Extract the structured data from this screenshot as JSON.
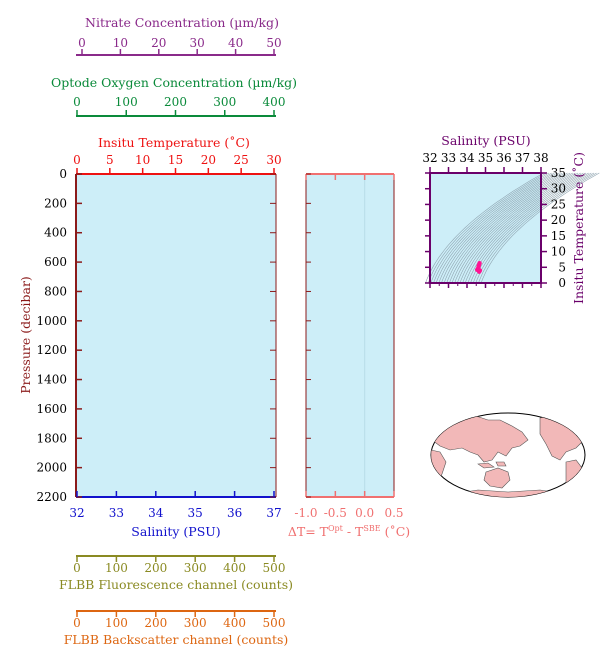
{
  "colors": {
    "nitrate": "#8a2a8a",
    "oxygen": "#0a8a3a",
    "temperature": "#ee1111",
    "salinity": "#1111cc",
    "pressure": "#8b1a1a",
    "dt": "#f07070",
    "fluor": "#8a8a22",
    "backscatter": "#dd6611",
    "ts_axes": "#6a006a",
    "panel_fill": "#cdeef8",
    "profile_marker": "#ff1493",
    "land": "#f2b8b8",
    "ocean": "#ffffff"
  },
  "chart_data": [
    {
      "type": "line",
      "title": "",
      "axes": {
        "nitrate": {
          "label": "Nitrate Concentration (µm/kg)",
          "range": [
            0,
            50
          ],
          "ticks": [
            "0",
            "10",
            "20",
            "30",
            "40",
            "50"
          ]
        },
        "oxygen": {
          "label": "Optode Oxygen Concentration (µm/kg)",
          "range": [
            0,
            400
          ],
          "ticks": [
            "0",
            "100",
            "200",
            "300",
            "400"
          ]
        },
        "temperature": {
          "label": "Insitu Temperature (˚C)",
          "range": [
            0,
            30
          ],
          "ticks": [
            "0",
            "5",
            "10",
            "15",
            "20",
            "25",
            "30"
          ]
        },
        "pressure": {
          "label": "Pressure (decibar)",
          "range": [
            0,
            2200
          ],
          "reversed": true,
          "ticks": [
            "0",
            "200",
            "400",
            "600",
            "800",
            "1000",
            "1200",
            "1400",
            "1600",
            "1800",
            "2000",
            "2200"
          ]
        },
        "salinity": {
          "label": "Salinity (PSU)",
          "range": [
            32,
            37
          ],
          "ticks": [
            "32",
            "33",
            "34",
            "35",
            "36",
            "37"
          ]
        },
        "fluorescence": {
          "label": "FLBB Fluorescence channel (counts)",
          "range": [
            0,
            500
          ],
          "ticks": [
            "0",
            "100",
            "200",
            "300",
            "400",
            "500"
          ]
        },
        "backscatter": {
          "label": "FLBB Backscatter channel (counts)",
          "range": [
            0,
            500
          ],
          "ticks": [
            "0",
            "100",
            "200",
            "300",
            "400",
            "500"
          ]
        }
      },
      "series": []
    },
    {
      "type": "line",
      "axes": {
        "dt": {
          "label_main": "ΔT= T",
          "label_sup1": "Opt",
          "label_mid": " - T",
          "label_sup2": "SBE",
          "label_end": " (˚C)",
          "range": [
            -1.0,
            0.5
          ],
          "ticks": [
            "-1.0",
            "-0.5",
            "0.0",
            "0.5"
          ]
        },
        "pressure": {
          "range": [
            0,
            2200
          ],
          "reversed": true
        }
      },
      "series": []
    },
    {
      "type": "scatter",
      "axes": {
        "x": {
          "label": "Salinity (PSU)",
          "range": [
            32,
            38
          ],
          "ticks": [
            "32",
            "33",
            "34",
            "35",
            "36",
            "37",
            "38"
          ]
        },
        "y": {
          "label": "Insitu Temperature (˚C)",
          "range": [
            0,
            35
          ],
          "ticks": [
            "0",
            "5",
            "10",
            "15",
            "20",
            "25",
            "30",
            "35"
          ]
        }
      },
      "points": [
        {
          "s": 34.55,
          "t": 4.2
        },
        {
          "s": 34.6,
          "t": 4.6
        },
        {
          "s": 34.62,
          "t": 5.0
        },
        {
          "s": 34.63,
          "t": 5.4
        },
        {
          "s": 34.65,
          "t": 5.8
        },
        {
          "s": 34.68,
          "t": 6.3
        },
        {
          "s": 34.7,
          "t": 4.0
        },
        {
          "s": 34.66,
          "t": 3.6
        }
      ]
    }
  ]
}
